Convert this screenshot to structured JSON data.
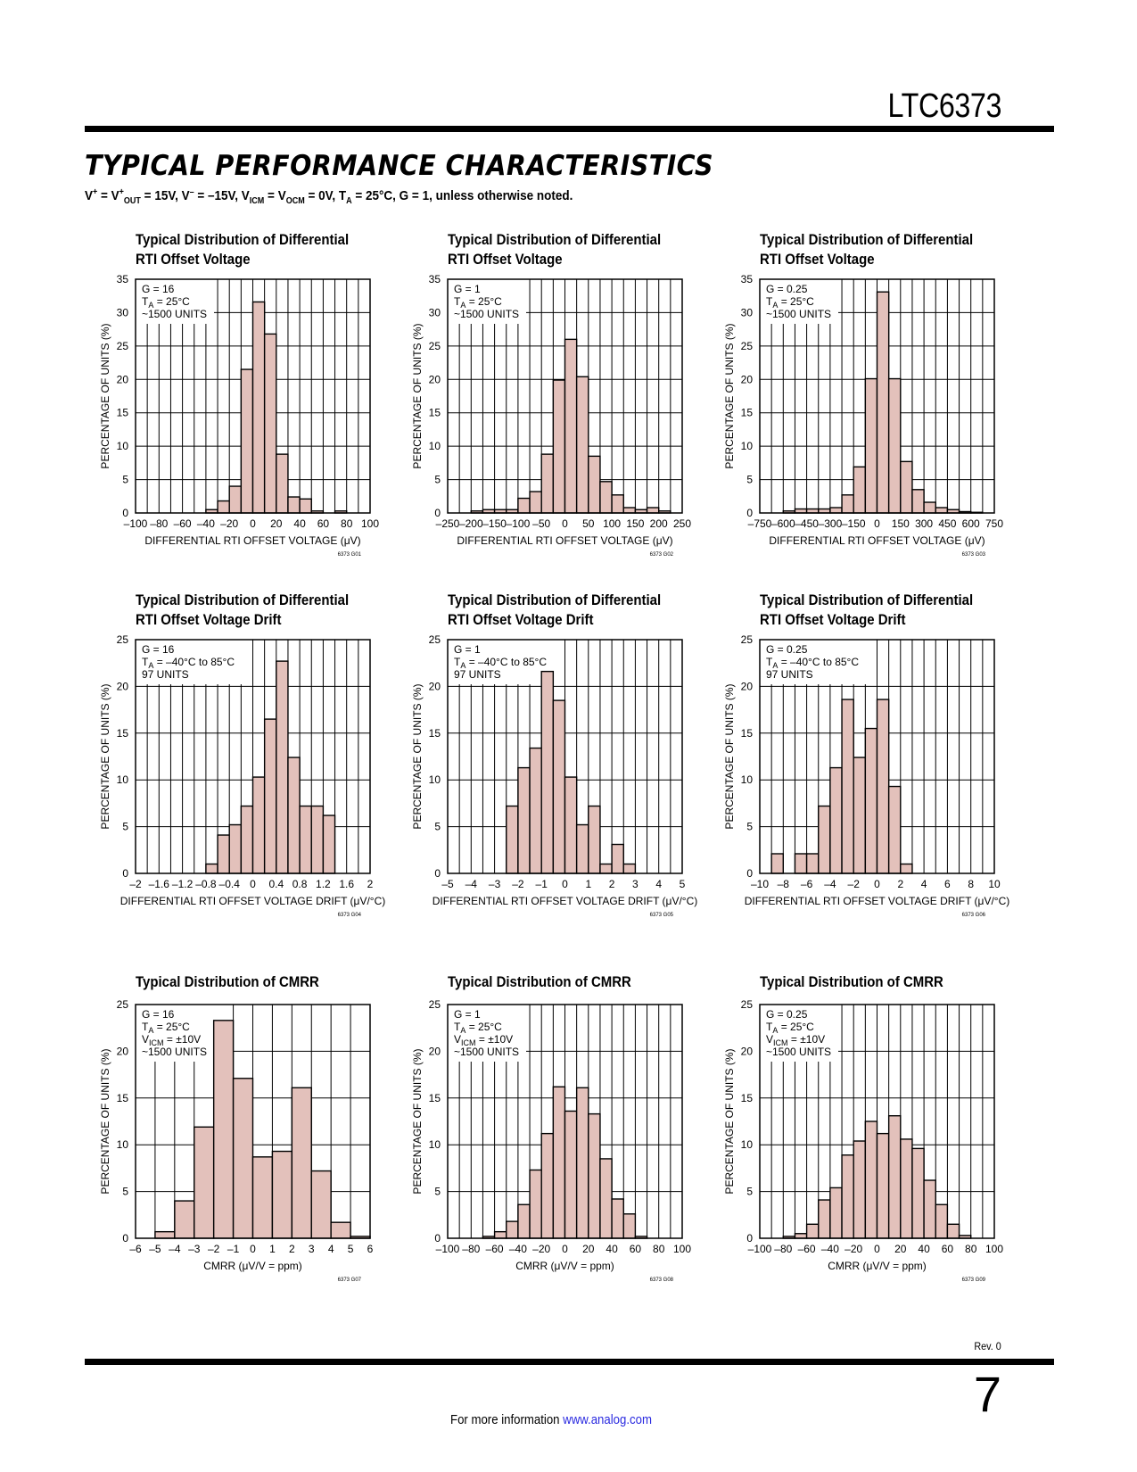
{
  "header": {
    "part_number": "LTC6373",
    "section_title": "TYPICAL PERFORMANCE CHARACTERISTICS",
    "conditions": "V+ = V+OUT = 15V, V– = –15V, VICM = VOCM = 0V, TA = 25°C, G = 1, unless otherwise noted."
  },
  "footer": {
    "revision": "Rev. 0",
    "page_number": "7",
    "more_info_text": "For more information ",
    "link_text": "www.analog.com"
  },
  "colors": {
    "bar_fill": "#e3c1bb",
    "bar_stroke": "#000000",
    "grid": "#000000",
    "link": "#2a2ae0"
  },
  "chart_data": [
    {
      "id": "G01",
      "type": "bar",
      "title": [
        "Typical Distribution of Differential",
        "RTI Offset Voltage"
      ],
      "xlabel": "DIFFERENTIAL RTI OFFSET VOLTAGE (μV)",
      "ylabel": "PERCENTAGE OF UNITS (%)",
      "figure_code": "6373 G01",
      "legend": [
        "G = 16",
        "TA = 25°C",
        "~1500 UNITS"
      ],
      "xlim": [
        -100,
        100
      ],
      "ylim": [
        0,
        35
      ],
      "xticks": [
        -100,
        -80,
        -60,
        -40,
        -20,
        0,
        20,
        40,
        60,
        80,
        100
      ],
      "xtick_labels": [
        "–100",
        "–80",
        "–60",
        "–40",
        "–20",
        "0",
        "20",
        "40",
        "60",
        "80",
        "100"
      ],
      "yticks": [
        0,
        5,
        10,
        15,
        20,
        25,
        30,
        35
      ],
      "bin_width": 10,
      "bin_starts": [
        -40,
        -30,
        -20,
        -10,
        0,
        10,
        20,
        30,
        40,
        50,
        60,
        70
      ],
      "values": [
        0.5,
        1.8,
        4.0,
        21.5,
        31.6,
        26.8,
        8.8,
        2.4,
        2.1,
        0.3,
        0.0,
        0.3
      ]
    },
    {
      "id": "G02",
      "type": "bar",
      "title": [
        "Typical Distribution of Differential",
        "RTI Offset Voltage"
      ],
      "xlabel": "DIFFERENTIAL RTI OFFSET VOLTAGE (μV)",
      "ylabel": "PERCENTAGE OF UNITS (%)",
      "figure_code": "6373 G02",
      "legend": [
        "G = 1",
        "TA = 25°C",
        "~1500 UNITS"
      ],
      "xlim": [
        -250,
        250
      ],
      "ylim": [
        0,
        35
      ],
      "xticks": [
        -250,
        -200,
        -150,
        -100,
        -50,
        0,
        50,
        100,
        150,
        200,
        250
      ],
      "xtick_labels": [
        "–250",
        "–200",
        "–150",
        "–100",
        "–50",
        "0",
        "50",
        "100",
        "150",
        "200",
        "250"
      ],
      "yticks": [
        0,
        5,
        10,
        15,
        20,
        25,
        30,
        35
      ],
      "bin_width": 25,
      "bin_starts": [
        -200,
        -175,
        -150,
        -125,
        -100,
        -75,
        -50,
        -25,
        0,
        25,
        50,
        75,
        100,
        125,
        150,
        175,
        200,
        225
      ],
      "values": [
        0.3,
        0.5,
        0.5,
        0.5,
        2.2,
        3.2,
        8.8,
        19.9,
        26.0,
        20.4,
        8.5,
        4.7,
        2.7,
        0.8,
        0.5,
        0.8,
        0.3,
        0.0
      ]
    },
    {
      "id": "G03",
      "type": "bar",
      "title": [
        "Typical Distribution of Differential",
        "RTI Offset Voltage"
      ],
      "xlabel": "DIFFERENTIAL RTI OFFSET VOLTAGE (μV)",
      "ylabel": "PERCENTAGE OF UNITS (%)",
      "figure_code": "6373 G03",
      "legend": [
        "G = 0.25",
        "TA = 25°C",
        "~1500 UNITS"
      ],
      "xlim": [
        -750,
        750
      ],
      "ylim": [
        0,
        35
      ],
      "xticks": [
        -750,
        -600,
        -450,
        -300,
        -150,
        0,
        150,
        300,
        450,
        600,
        750
      ],
      "xtick_labels": [
        "–750",
        "–600",
        "–450",
        "–300",
        "–150",
        "0",
        "150",
        "300",
        "450",
        "600",
        "750"
      ],
      "yticks": [
        0,
        5,
        10,
        15,
        20,
        25,
        30,
        35
      ],
      "bin_width": 75,
      "bin_starts": [
        -600,
        -525,
        -450,
        -375,
        -300,
        -225,
        -150,
        -75,
        0,
        75,
        150,
        225,
        300,
        375,
        450,
        525,
        600,
        675
      ],
      "values": [
        0.3,
        0.6,
        0.6,
        0.6,
        0.8,
        2.7,
        6.9,
        20.1,
        33.1,
        20.1,
        7.7,
        3.5,
        1.6,
        0.8,
        0.5,
        0.2,
        0.1,
        0.0
      ]
    },
    {
      "id": "G04",
      "type": "bar",
      "title": [
        "Typical Distribution of Differential",
        "RTI Offset Voltage Drift"
      ],
      "xlabel": "DIFFERENTIAL RTI OFFSET VOLTAGE DRIFT (μV/°C)",
      "ylabel": "PERCENTAGE OF UNITS (%)",
      "figure_code": "6373 G04",
      "legend": [
        "G = 16",
        "TA = –40°C to 85°C",
        "97 UNITS"
      ],
      "xlim": [
        -2,
        2
      ],
      "ylim": [
        0,
        25
      ],
      "xticks": [
        -2,
        -1.6,
        -1.2,
        -0.8,
        -0.4,
        0,
        0.4,
        0.8,
        1.2,
        1.6,
        2
      ],
      "xtick_labels": [
        "–2",
        "–1.6",
        "–1.2",
        "–0.8",
        "–0.4",
        "0",
        "0.4",
        "0.8",
        "1.2",
        "1.6",
        "2"
      ],
      "yticks": [
        0,
        5,
        10,
        15,
        20,
        25
      ],
      "bin_width": 0.2,
      "bin_starts": [
        -0.8,
        -0.6,
        -0.4,
        -0.2,
        0,
        0.2,
        0.4,
        0.6,
        0.8,
        1.0,
        1.2
      ],
      "values": [
        1.0,
        4.1,
        5.2,
        7.2,
        10.3,
        16.5,
        22.7,
        12.4,
        7.2,
        7.2,
        6.2
      ]
    },
    {
      "id": "G05",
      "type": "bar",
      "title": [
        "Typical Distribution of Differential",
        "RTI Offset Voltage Drift"
      ],
      "xlabel": "DIFFERENTIAL RTI OFFSET VOLTAGE DRIFT (μV/°C)",
      "ylabel": "PERCENTAGE OF UNITS (%)",
      "figure_code": "6373 G05",
      "legend": [
        "G = 1",
        "TA = –40°C to 85°C",
        "97 UNITS"
      ],
      "xlim": [
        -5,
        5
      ],
      "ylim": [
        0,
        25
      ],
      "xticks": [
        -5,
        -4,
        -3,
        -2,
        -1,
        0,
        1,
        2,
        3,
        4,
        5
      ],
      "xtick_labels": [
        "–5",
        "–4",
        "–3",
        "–2",
        "–1",
        "0",
        "1",
        "2",
        "3",
        "4",
        "5"
      ],
      "yticks": [
        0,
        5,
        10,
        15,
        20,
        25
      ],
      "bin_width": 0.5,
      "bin_starts": [
        -2.5,
        -2.0,
        -1.5,
        -1.0,
        -0.5,
        0,
        0.5,
        1.0,
        1.5,
        2.0,
        2.5
      ],
      "values": [
        7.2,
        11.3,
        13.4,
        21.6,
        18.5,
        10.3,
        5.2,
        7.2,
        1.0,
        3.1,
        1.0
      ]
    },
    {
      "id": "G06",
      "type": "bar",
      "title": [
        "Typical Distribution of Differential",
        "RTI Offset Voltage Drift"
      ],
      "xlabel": "DIFFERENTIAL RTI OFFSET VOLTAGE DRIFT (μV/°C)",
      "ylabel": "PERCENTAGE OF UNITS (%)",
      "figure_code": "6373 G06",
      "legend": [
        "G = 0.25",
        "TA = –40°C to 85°C",
        "97 UNITS"
      ],
      "xlim": [
        -10,
        10
      ],
      "ylim": [
        0,
        25
      ],
      "xticks": [
        -10,
        -8,
        -6,
        -4,
        -2,
        0,
        2,
        4,
        6,
        8,
        10
      ],
      "xtick_labels": [
        "–10",
        "–8",
        "–6",
        "–4",
        "–2",
        "0",
        "2",
        "4",
        "6",
        "8",
        "10"
      ],
      "yticks": [
        0,
        5,
        10,
        15,
        20,
        25
      ],
      "bin_width": 1,
      "bin_starts": [
        -9,
        -8,
        -7,
        -6,
        -5,
        -4,
        -3,
        -2,
        -1,
        0,
        1,
        2
      ],
      "values": [
        2.1,
        0.0,
        2.1,
        2.1,
        7.2,
        11.3,
        18.6,
        12.4,
        15.5,
        18.6,
        9.3,
        1.0
      ]
    },
    {
      "id": "G07",
      "type": "bar",
      "title": [
        "Typical Distribution of CMRR"
      ],
      "xlabel": "CMRR (μV/V = ppm)",
      "ylabel": "PERCENTAGE OF UNITS (%)",
      "figure_code": "6373 G07",
      "legend": [
        "G = 16",
        "TA = 25°C",
        "VICM = ±10V",
        "~1500 UNITS"
      ],
      "xlim": [
        -6,
        6
      ],
      "ylim": [
        0,
        25
      ],
      "xticks": [
        -6,
        -5,
        -4,
        -3,
        -2,
        -1,
        0,
        1,
        2,
        3,
        4,
        5,
        6
      ],
      "xtick_labels": [
        "–6",
        "–5",
        "–4",
        "–3",
        "–2",
        "–1",
        "0",
        "1",
        "2",
        "3",
        "4",
        "5",
        "6"
      ],
      "yticks": [
        0,
        5,
        10,
        15,
        20,
        25
      ],
      "bin_width": 1,
      "bin_starts": [
        -5,
        -4,
        -3,
        -2,
        -1,
        0,
        1,
        2,
        3,
        4,
        5
      ],
      "values": [
        0.7,
        4.0,
        11.9,
        23.3,
        17.1,
        8.7,
        9.3,
        16.1,
        7.2,
        1.7,
        0.2
      ]
    },
    {
      "id": "G08",
      "type": "bar",
      "title": [
        "Typical Distribution of CMRR"
      ],
      "xlabel": "CMRR (μV/V = ppm)",
      "ylabel": "PERCENTAGE OF UNITS (%)",
      "figure_code": "6373 G08",
      "legend": [
        "G = 1",
        "TA = 25°C",
        "VICM = ±10V",
        "~1500 UNITS"
      ],
      "xlim": [
        -100,
        100
      ],
      "ylim": [
        0,
        25
      ],
      "xticks": [
        -100,
        -80,
        -60,
        -40,
        -20,
        0,
        20,
        40,
        60,
        80,
        100
      ],
      "xtick_labels": [
        "–100",
        "–80",
        "–60",
        "–40",
        "–20",
        "0",
        "20",
        "40",
        "60",
        "80",
        "100"
      ],
      "yticks": [
        0,
        5,
        10,
        15,
        20,
        25
      ],
      "bin_width": 10,
      "bin_starts": [
        -70,
        -60,
        -50,
        -40,
        -30,
        -20,
        -10,
        0,
        10,
        20,
        30,
        40,
        50,
        60
      ],
      "values": [
        0.2,
        0.7,
        1.8,
        3.6,
        7.3,
        11.2,
        16.2,
        13.6,
        16.1,
        13.3,
        8.5,
        4.2,
        2.6,
        0.2
      ]
    },
    {
      "id": "G09",
      "type": "bar",
      "title": [
        "Typical Distribution of CMRR"
      ],
      "xlabel": "CMRR (μV/V = ppm)",
      "ylabel": "PERCENTAGE OF UNITS (%)",
      "figure_code": "6373 G09",
      "legend": [
        "G = 0.25",
        "TA = 25°C",
        "VICM = ±10V",
        "~1500 UNITS"
      ],
      "xlim": [
        -100,
        100
      ],
      "ylim": [
        0,
        25
      ],
      "xticks": [
        -100,
        -80,
        -60,
        -40,
        -20,
        0,
        20,
        40,
        60,
        80,
        100
      ],
      "xtick_labels": [
        "–100",
        "–80",
        "–60",
        "–40",
        "–20",
        "0",
        "20",
        "40",
        "60",
        "80",
        "100"
      ],
      "yticks": [
        0,
        5,
        10,
        15,
        20,
        25
      ],
      "bin_width": 10,
      "bin_starts": [
        -80,
        -70,
        -60,
        -50,
        -40,
        -30,
        -20,
        -10,
        0,
        10,
        20,
        30,
        40,
        50,
        60,
        70
      ],
      "values": [
        0.2,
        0.5,
        1.5,
        4.1,
        5.4,
        8.9,
        10.4,
        12.5,
        11.2,
        13.1,
        10.6,
        9.6,
        6.2,
        3.6,
        1.5,
        0.3
      ]
    }
  ]
}
